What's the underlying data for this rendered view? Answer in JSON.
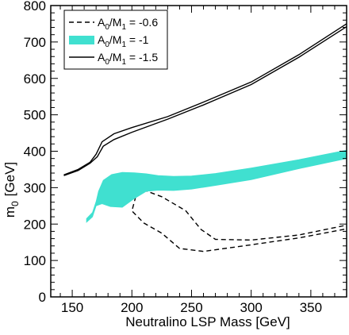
{
  "chart_data": {
    "type": "line",
    "xlabel": "Neutralino LSP Mass  [GeV]",
    "ylabel_main": "m",
    "ylabel_sub": "0",
    "ylabel_unit": "[GeV]",
    "xlim": [
      132,
      380
    ],
    "ylim": [
      0,
      800
    ],
    "x_ticks": [
      150,
      200,
      250,
      300,
      350
    ],
    "y_ticks": [
      0,
      100,
      200,
      300,
      400,
      500,
      600,
      700,
      800
    ],
    "x_minor_step": 10,
    "y_minor_step": 20,
    "legend_position": "top-left",
    "grid": false,
    "colors": {
      "band": "#40e0d0",
      "line": "#000000"
    },
    "series": [
      {
        "name": "A0/M1 = -0.6",
        "legend_parts": [
          "A",
          "0",
          "/M",
          "1",
          " = -0.6"
        ],
        "style": "dashed",
        "curves": [
          {
            "x": [
              203,
              225,
              245,
              258,
              270,
              300,
              340,
              380
            ],
            "y": [
              302,
              275,
              237,
              185,
              158,
              156,
              170,
              197
            ]
          },
          {
            "x": [
              205,
              200,
              210,
              225,
              240,
              260,
              300,
              340,
              380
            ],
            "y": [
              297,
              236,
              203,
              175,
              133,
              125,
              143,
              162,
              187
            ]
          }
        ]
      },
      {
        "name": "A0/M1 = -1",
        "legend_parts": [
          "A",
          "0",
          "/M",
          "1",
          " = -1"
        ],
        "style": "band",
        "upper": {
          "x": [
            162,
            167,
            170,
            172,
            176,
            183,
            192,
            202,
            212,
            222,
            235,
            250,
            270,
            300,
            340,
            380
          ],
          "y": [
            215,
            232,
            262,
            290,
            320,
            336,
            342,
            341,
            338,
            333,
            331,
            332,
            339,
            354,
            377,
            403
          ]
        },
        "lower": {
          "x": [
            162,
            167,
            170,
            175,
            182,
            192,
            202,
            212,
            222,
            235,
            250,
            270,
            300,
            340,
            380
          ],
          "y": [
            205,
            220,
            250,
            256,
            248,
            246,
            270,
            290,
            293,
            292,
            296,
            306,
            322,
            352,
            380
          ]
        }
      },
      {
        "name": "A0/M1 = -1.5",
        "legend_parts": [
          "A",
          "0",
          "/M",
          "1",
          " = -1.5"
        ],
        "style": "solid",
        "curves": [
          {
            "x": [
              143,
              155,
              165,
              170,
              175,
              185,
              200,
              230,
              260,
              300,
              340,
              380
            ],
            "y": [
              335,
              350,
              370,
              392,
              426,
              448,
              465,
              495,
              535,
              590,
              665,
              750
            ]
          },
          {
            "x": [
              143,
              155,
              165,
              171,
              176,
              185,
              200,
              230,
              260,
              300,
              340,
              380
            ],
            "y": [
              333,
              347,
              367,
              385,
              414,
              432,
              452,
              488,
              527,
              583,
              658,
              742
            ]
          }
        ]
      }
    ]
  }
}
